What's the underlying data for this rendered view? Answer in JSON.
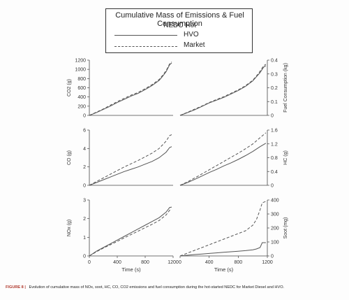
{
  "legend": {
    "title": "Cumulative Mass of Emissions & Fuel Consumption",
    "subtitle": "NEDC Hot",
    "series": [
      "HVO",
      "Market"
    ]
  },
  "caption": {
    "label": "FIGURE 8 |",
    "text": "Evolution of cumulative mass of NOx, soot, HC, CO, CO2 emissions and fuel consumption during the hot-started NEDC for Market Diesel and HVO."
  },
  "colors": {
    "hvo": "#555555",
    "market": "#555555",
    "axis": "#444444"
  },
  "chart_data": [
    {
      "type": "line",
      "ylabel": "CO2 (g)",
      "ylim": [
        0,
        1200
      ],
      "yticks": [
        0,
        200,
        400,
        600,
        800,
        1000,
        1200
      ],
      "xlim": [
        0,
        1200
      ],
      "xticks": [],
      "xlabel": "",
      "series": [
        {
          "name": "HVO",
          "x": [
            0,
            100,
            200,
            300,
            400,
            500,
            600,
            700,
            800,
            900,
            1000,
            1050,
            1100,
            1150,
            1180
          ],
          "y": [
            0,
            60,
            130,
            200,
            280,
            350,
            420,
            480,
            560,
            650,
            760,
            850,
            950,
            1100,
            1140
          ]
        },
        {
          "name": "Market",
          "x": [
            0,
            100,
            200,
            300,
            400,
            500,
            600,
            700,
            800,
            900,
            1000,
            1050,
            1100,
            1150,
            1180
          ],
          "y": [
            0,
            70,
            140,
            220,
            300,
            370,
            440,
            500,
            580,
            670,
            780,
            870,
            970,
            1120,
            1160
          ]
        }
      ]
    },
    {
      "type": "line",
      "ylabel": "Fuel Consumption (kg)",
      "ylim": [
        0,
        0.4
      ],
      "yticks": [
        0,
        0.1,
        0.2,
        0.3,
        0.4
      ],
      "xlim": [
        0,
        1200
      ],
      "xticks": [],
      "xlabel": "",
      "series": [
        {
          "name": "HVO",
          "x": [
            0,
            100,
            200,
            300,
            400,
            500,
            600,
            700,
            800,
            900,
            1000,
            1050,
            1100,
            1150,
            1180
          ],
          "y": [
            0,
            0.02,
            0.04,
            0.065,
            0.09,
            0.11,
            0.13,
            0.155,
            0.18,
            0.21,
            0.25,
            0.28,
            0.31,
            0.35,
            0.36
          ]
        },
        {
          "name": "Market",
          "x": [
            0,
            100,
            200,
            300,
            400,
            500,
            600,
            700,
            800,
            900,
            1000,
            1050,
            1100,
            1150,
            1180
          ],
          "y": [
            0,
            0.022,
            0.045,
            0.068,
            0.093,
            0.115,
            0.135,
            0.16,
            0.185,
            0.215,
            0.255,
            0.285,
            0.32,
            0.36,
            0.37
          ]
        }
      ]
    },
    {
      "type": "line",
      "ylabel": "CO (g)",
      "ylim": [
        0,
        6
      ],
      "yticks": [
        0,
        2,
        4,
        6
      ],
      "xlim": [
        0,
        1200
      ],
      "xticks": [],
      "xlabel": "",
      "series": [
        {
          "name": "HVO",
          "x": [
            0,
            100,
            200,
            300,
            400,
            500,
            600,
            700,
            800,
            900,
            1000,
            1100,
            1150,
            1180
          ],
          "y": [
            0,
            0.3,
            0.6,
            0.9,
            1.2,
            1.5,
            1.75,
            2.0,
            2.3,
            2.6,
            3.0,
            3.6,
            4.1,
            4.2
          ]
        },
        {
          "name": "Market",
          "x": [
            0,
            100,
            200,
            300,
            400,
            500,
            600,
            700,
            800,
            900,
            1000,
            1100,
            1150,
            1180
          ],
          "y": [
            0,
            0.4,
            0.8,
            1.2,
            1.6,
            2.0,
            2.35,
            2.7,
            3.1,
            3.5,
            4.0,
            4.8,
            5.4,
            5.5
          ]
        }
      ]
    },
    {
      "type": "line",
      "ylabel": "HC (g)",
      "ylim": [
        0,
        1.6
      ],
      "yticks": [
        0,
        0.4,
        0.8,
        1.2,
        1.6
      ],
      "xlim": [
        0,
        1200
      ],
      "xticks": [],
      "xlabel": "",
      "series": [
        {
          "name": "HVO",
          "x": [
            0,
            100,
            200,
            300,
            400,
            500,
            600,
            700,
            800,
            900,
            1000,
            1100,
            1180
          ],
          "y": [
            0,
            0.08,
            0.17,
            0.27,
            0.37,
            0.46,
            0.56,
            0.65,
            0.75,
            0.86,
            0.98,
            1.12,
            1.22
          ]
        },
        {
          "name": "Market",
          "x": [
            0,
            100,
            200,
            300,
            400,
            500,
            600,
            700,
            800,
            900,
            1000,
            1100,
            1180
          ],
          "y": [
            0,
            0.1,
            0.21,
            0.33,
            0.45,
            0.57,
            0.69,
            0.81,
            0.93,
            1.06,
            1.2,
            1.38,
            1.52
          ]
        }
      ]
    },
    {
      "type": "line",
      "ylabel": "NOx (g)",
      "ylim": [
        0,
        3
      ],
      "yticks": [
        0,
        1,
        2,
        3
      ],
      "xlim": [
        0,
        1200
      ],
      "xticks": [
        0,
        400,
        800,
        1200
      ],
      "xlabel": "Time (s)",
      "series": [
        {
          "name": "HVO",
          "x": [
            0,
            100,
            200,
            300,
            400,
            500,
            600,
            700,
            800,
            900,
            1000,
            1100,
            1150,
            1180
          ],
          "y": [
            0,
            0.25,
            0.45,
            0.65,
            0.85,
            1.05,
            1.25,
            1.45,
            1.65,
            1.85,
            2.05,
            2.35,
            2.6,
            2.62
          ]
        },
        {
          "name": "Market",
          "x": [
            0,
            100,
            200,
            300,
            400,
            500,
            600,
            700,
            800,
            900,
            1000,
            1100,
            1150,
            1180
          ],
          "y": [
            0,
            0.22,
            0.42,
            0.6,
            0.78,
            0.97,
            1.15,
            1.33,
            1.52,
            1.7,
            1.9,
            2.2,
            2.45,
            2.5
          ]
        }
      ]
    },
    {
      "type": "line",
      "ylabel": "Soot (mg)",
      "ylim": [
        0,
        400
      ],
      "yticks": [
        0,
        100,
        200,
        300,
        400
      ],
      "xlim": [
        0,
        1200
      ],
      "xticks": [
        0,
        400,
        800,
        1200
      ],
      "xlabel": "Time (s)",
      "series": [
        {
          "name": "HVO",
          "x": [
            0,
            100,
            200,
            300,
            400,
            500,
            600,
            700,
            800,
            900,
            1000,
            1050,
            1100,
            1130,
            1180
          ],
          "y": [
            0,
            5,
            10,
            14,
            18,
            22,
            26,
            30,
            34,
            38,
            44,
            50,
            60,
            95,
            95
          ]
        },
        {
          "name": "Market",
          "x": [
            0,
            100,
            200,
            300,
            400,
            500,
            600,
            700,
            800,
            900,
            1000,
            1050,
            1100,
            1130,
            1180
          ],
          "y": [
            0,
            20,
            40,
            60,
            80,
            100,
            120,
            140,
            160,
            180,
            220,
            260,
            330,
            380,
            390
          ]
        }
      ]
    }
  ]
}
